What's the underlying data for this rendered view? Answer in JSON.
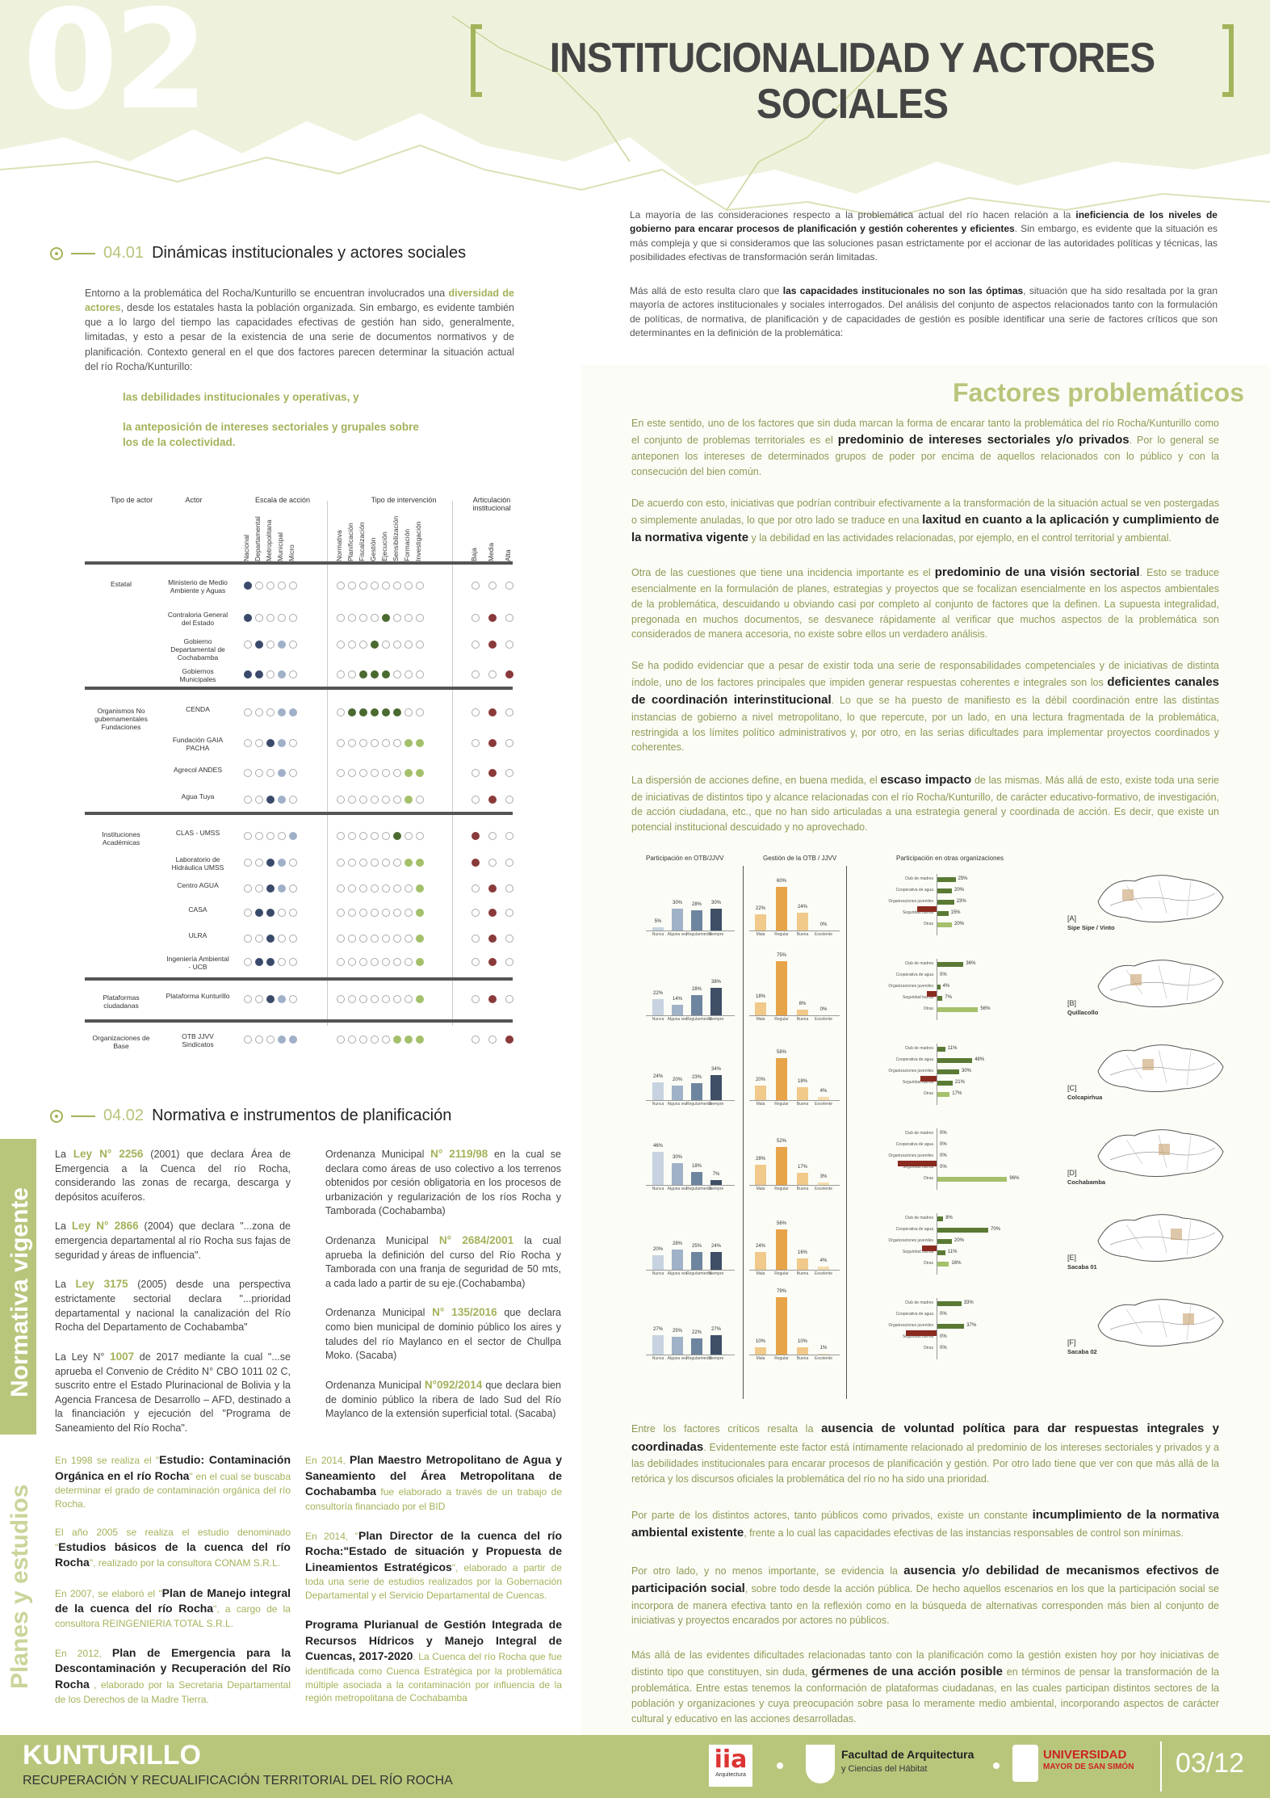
{
  "header": {
    "number": "02",
    "title": "INSTITUCIONALIDAD Y ACTORES SOCIALES"
  },
  "intro_right": {
    "p1_a": "La mayoría de las consideraciones respecto a la problemática actual del río  hacen relación a la ",
    "p1_b": "ineficiencia de los niveles de gobierno para encarar procesos de planificación y gestión coherentes y eficientes",
    "p1_c": ". Sin embargo, es evidente que la situación es más compleja y que si consideramos que las soluciones pasan estrictamente por el accionar de las autoridades políticas y técnicas, las posibilidades efectivas de transformación serán limitadas.",
    "p2_a": "Más allá de esto resulta claro que ",
    "p2_b": "las capacidades institucionales no son las óptimas",
    "p2_c": ", situación que ha sido resaltada por la gran mayoría de actores institucionales y sociales interrogados. Del análisis del conjunto de aspectos relacionados tanto con la formulación de políticas, de normativa, de planificación y de capacidades de gestión es posible identificar una serie de factores críticos que son determinantes en la definición de la problemática:"
  },
  "section1": {
    "num": "04.01",
    "title": "Dinámicas institucionales y actores sociales",
    "p_a": "Entorno a la problemática del Rocha/Kunturillo se encuentran involucrados una ",
    "p_b": "diversidad de actores",
    "p_c": ", desde los estatales hasta la población organizada. Sin embargo, es evidente también que a lo largo del tiempo las capacidades efectivas de gestión han sido, generalmente, limitadas, y esto a pesar de la existencia de una serie de documentos normativos y de planificación. Contexto general en el que dos factores parecen determinar la situación actual del río Rocha/Kunturillo:",
    "f1": "las debilidades institucionales y operativas,  y",
    "f2": "la anteposición de intereses sectoriales y grupales sobre los de la colectividad."
  },
  "table": {
    "headers": [
      "Tipo de actor",
      "Actor",
      "Escala de acción",
      "Tipo de intervención",
      "Articulación institucional"
    ],
    "scale_cols": [
      "Nacional",
      "Departamental",
      "Metropolitana",
      "Municipal",
      "Micro"
    ],
    "interv_cols": [
      "Normativa",
      "Planificación",
      "Fiscalización",
      "Gestión",
      "Ejecución",
      "Sensibilización",
      "Formación",
      "Investigación"
    ],
    "artic_cols": [
      "Baja",
      "Media",
      "Alta"
    ],
    "groups": [
      {
        "type": "Estatal",
        "rows": [
          "Ministerio de Medio Ambiente y Aguas",
          "Contraloria General del Estado",
          "Gobierno Departamental de Cochabamba",
          "Gobiernos Municipales"
        ]
      },
      {
        "type": "Organismos No gubernamentales\nFundaciones",
        "rows": [
          "CENDA",
          "Fundación GAIA PACHA",
          "Agrecol ANDES",
          "Agua Tuya"
        ]
      },
      {
        "type": "Instituciones Académicas",
        "rows": [
          "CLAS - UMSS",
          "Laboratorio de Hidráulica UMSS",
          "Centro AGUA",
          "CASA",
          "ULRA",
          "Ingeniería Ambiental - UCB"
        ]
      },
      {
        "type": "Plataformas ciudadanas",
        "rows": [
          "Plataforma Kunturillo"
        ]
      },
      {
        "type": "Organizaciones de Base",
        "rows": [
          "OTB JJVV Sindicatos"
        ]
      }
    ]
  },
  "section2": {
    "num": "04.02",
    "title": "Normativa e instrumentos de planificación"
  },
  "side": {
    "normativa": "Normativa vigente",
    "planes": "Planes y estudios"
  },
  "normativa": {
    "c1": [
      {
        "a": "La ",
        "hl": "Ley N° 2256",
        "b": " (2001) que declara Área de Emergencia a la Cuenca del río Rocha, considerando las zonas de recarga, descarga y depósitos acuíferos."
      },
      {
        "a": "La ",
        "hl": "Ley N° 2866",
        "b": " (2004) que declara \"...zona de emergencia departamental al río Rocha sus fajas de seguridad y áreas de influencia\"."
      },
      {
        "a": "La ",
        "hl": "Ley 3175",
        "b": " (2005) desde una perspectiva estrictamente sectorial declara \"...prioridad departamental y nacional la canalización del Río Rocha del Departamento de Cochabamba\""
      },
      {
        "a": "La Ley N° ",
        "hl": "1007",
        "b": " de 2017 mediante la cual \"...se aprueba el Convenio de Crédito N° CBO 1011 02 C, suscrito entre el Estado Plurinacional de Bolivia y la Agencia Francesa de Desarrollo – AFD, destinado a la financiación y ejecución del \"Programa de Saneamiento del Río Rocha\"."
      }
    ],
    "c2": [
      {
        "a": "Ordenanza Municipal ",
        "hl": "N° 2119/98",
        "b": " en la cual se declara como áreas de uso colectivo  a los terrenos obtenidos por cesión obligatoria en los procesos de urbanización y regularización de los ríos Rocha y Tamborada (Cochabamba)"
      },
      {
        "a": "Ordenanza Municipal ",
        "hl": "N° 2684/2001",
        "b": "  la cual aprueba la definición del curso del Río Rocha y Tamborada con una franja de seguridad de 50 mts, a cada lado a partir de su eje.(Cochabamba)"
      },
      {
        "a": "Ordenanza Municipal ",
        "hl": "N° 135/2016",
        "b": " que declara como bien municipal de dominio público los aires y taludes del río Maylanco en el sector de Chullpa Moko. (Sacaba)"
      },
      {
        "a": "Ordenanza Municipal ",
        "hl": "N°092/2014",
        "b": " que declara bien de dominio público la ribera de lado Sud del Río Maylanco de la extensión superficial total. (Sacaba)"
      }
    ]
  },
  "planes": {
    "c1": [
      {
        "a": "En 1998 se realiza el \"",
        "b": "Estudio: Contaminación Orgánica en el río Rocha",
        "c": "\" en el cual se buscaba determinar el grado de contaminación orgánica del río Rocha."
      },
      {
        "a": "El año 2005  se realiza el estudio denominado \"",
        "b": "Estudios básicos de la cuenca del río Rocha",
        "c": "\", realizado por la consultora CONAM S.R.L."
      },
      {
        "a": "En 2007, se elaboró el \"",
        "b": "Plan de Manejo integral de la cuenca del río Rocha",
        "c": "\", a cargo de la consultora REINGENIERIA TOTAL S.R.L."
      },
      {
        "a": "En 2012, ",
        "b": "Plan de Emergencia para la Descontaminación y Recuperación del Río Rocha",
        "c": " , elaborado por la Secretaria Departamental de los Derechos de la Madre Tierra."
      }
    ],
    "c2": [
      {
        "a": "En 2014, ",
        "b": "Plan Maestro Metropolitano de Agua y Saneamiento del Área Metropolitana de Cochabamba",
        "c": " fue elaborado  a través de un trabajo de consultoría financiado por el BID"
      },
      {
        "a": "En 2014, \"",
        "b": "Plan Director de la cuenca del río Rocha:\"Estado de situación y Propuesta de Lineamientos Estratégicos",
        "c": "\", elaborado a partir de toda una serie de estudios realizados por la Gobernación Departamental y el Servicio Departamental de Cuencas."
      },
      {
        "a": "",
        "b": "Programa Plurianual de Gestión Integrada de Recursos Hídricos y Manejo Integral de Cuencas, 2017-2020",
        "c": ". La Cuenca del río Rocha que fue identificada como Cuenca Estratégica por la problemática múltiple asociada a la contaminación por influencia de la región metropolitana de Cochabamba"
      }
    ]
  },
  "factores": {
    "title": "Factores problemáticos",
    "paras": [
      {
        "a": "En este sentido, uno de los factores que sin duda marcan la forma de encarar tanto la problemática del río Rocha/Kunturillo como el conjunto de problemas territoriales es el ",
        "b": "predominio de intereses sectoriales y/o privados",
        "c": ". Por lo general se anteponen los intereses de determinados grupos de poder por encima de aquellos relacionados con lo público y con la consecución del bien común."
      },
      {
        "a": "De acuerdo con esto, iniciativas que podrían contribuir efectivamente a la transformación de la situación actual se ven postergadas o simplemente anuladas, lo que por otro lado se traduce en una ",
        "b": "laxitud en cuanto a la aplicación y cumplimiento de la normativa vigente",
        "c": " y la debilidad en las actividades relacionadas, por ejemplo, en el control territorial y ambiental."
      },
      {
        "a": "Otra de las cuestiones que tiene una incidencia importante es el ",
        "b": "predominio de una visión sectorial",
        "c": ". Esto se traduce esencialmente en la formulación de planes, estrategias y proyectos que se focalizan esencialmente en los aspectos ambientales de la problemática, descuidando u obviando casi por completo al conjunto de factores que la definen. La supuesta integralidad, pregonada en muchos documentos, se desvanece rápidamente al verificar que muchos aspectos de la problemática son considerados de manera accesoria, no existe sobre ellos un verdadero análisis."
      },
      {
        "a": "Se ha podido evidenciar que a pesar de existir toda una serie de responsabilidades competenciales y de iniciativas de distinta índole, uno de los factores principales que impiden generar respuestas coherentes e integrales son los ",
        "b": "deficientes canales de coordinación interinstitucional",
        "c": ". Lo que se ha puesto de manifiesto es la débil coordinación entre las distintas instancias de gobierno a nivel metropolitano, lo que repercute, por un lado, en una lectura fragmentada de la problemática, restringida a los límites político administrativos y, por otro, en las serias dificultades para implementar proyectos coordinados y coherentes."
      },
      {
        "a": "La dispersión de acciones define, en  buena medida, el ",
        "b": "escaso impacto",
        "c": " de las mismas. Más allá de esto, existe toda una serie de iniciativas de distintos tipo y alcance relacionadas con el río Rocha/Kunturillo, de carácter educativo-formativo, de investigación, de acción ciudadana, etc., que no han sido articuladas a una estrategia general y coordinada de acción.  Es decir, que existe un potencial institucional descuidado y no aprovechado."
      }
    ],
    "paras2": [
      {
        "a": "Entre los factores críticos resalta la ",
        "b": "ausencia de voluntad política para dar respuestas integrales y coordinadas",
        "c": ". Evidentemente este factor está íntimamente relacionado al predominio de los intereses sectoriales y privados y a las debilidades institucionales para encarar procesos de planificación y gestión. Por otro lado tiene que ver con que más allá de la retórica y los discursos oficiales la problemática del río no ha sido una prioridad."
      },
      {
        "a": "Por parte de los distintos actores, tanto públicos como privados, existe un constante ",
        "b": "incumplimiento de la normativa ambiental existente",
        "c": ", frente a lo cual las capacidades efectivas de las instancias responsables de control son mínimas."
      },
      {
        "a": "Por otro lado, y no menos importante, se evidencia la ",
        "b": "ausencia y/o debilidad  de mecanismos efectivos de participación social",
        "c": ", sobre todo desde la acción pública. De hecho aquellos escenarios en los que la participación social se incorpora de manera efectiva tanto en la reflexión como en la búsqueda de alternativas corresponden más bien al conjunto de iniciativas y proyectos encarados por actores no públicos."
      },
      {
        "a": "Más allá de las evidentes dificultades relacionadas tanto con la planificación como la gestión existen hoy por hoy iniciativas de distinto tipo que constituyen, sin duda, ",
        "b": "gérmenes de una acción posible",
        "c": " en términos de pensar la transformación de la problemática. Entre estas tenemos la conformación de plataformas ciudadanas, en las cuales participan distintos sectores de la población y organizaciones y cuya preocupación sobre pasa lo meramente medio ambiental, incorporando aspectos de carácter cultural y educativo en las acciones desarrolladas."
      }
    ]
  },
  "charts": {
    "col_titles": [
      "Participación en OTB/JJVV",
      "Gestión de la OTB / JJVV",
      "Participación en otras organizaciones"
    ],
    "zones": [
      {
        "letter": "[A]",
        "name": "Sipe Sipe / Vinto"
      },
      {
        "letter": "[B]",
        "name": "Quillacollo"
      },
      {
        "letter": "[C]",
        "name": "Colcapirhua"
      },
      {
        "letter": "[D]",
        "name": "Cochabamba"
      },
      {
        "letter": "[E]",
        "name": "Sacaba 01"
      },
      {
        "letter": "[F]",
        "name": "Sacaba 02"
      }
    ]
  },
  "chart_data": [
    {
      "type": "bar",
      "title": "Participación en OTB/JJVV",
      "categories": [
        "Nunca",
        "Alguna vez",
        "Regularmente",
        "Siempre"
      ],
      "series": [
        {
          "name": "[A]",
          "values": [
            5,
            30,
            28,
            30
          ]
        },
        {
          "name": "[B]",
          "values": [
            22,
            14,
            28,
            38
          ]
        },
        {
          "name": "[C]",
          "values": [
            24,
            20,
            23,
            34
          ]
        },
        {
          "name": "[D]",
          "values": [
            46,
            30,
            18,
            7
          ]
        },
        {
          "name": "[E]",
          "values": [
            20,
            28,
            25,
            24
          ]
        },
        {
          "name": "[F]",
          "values": [
            27,
            25,
            22,
            27
          ]
        }
      ]
    },
    {
      "type": "bar",
      "title": "Gestión de la OTB / JJVV",
      "categories": [
        "Mala",
        "Regular",
        "Buena",
        "Excelente"
      ],
      "series": [
        {
          "name": "[A]",
          "values": [
            22,
            60,
            24,
            0
          ]
        },
        {
          "name": "[B]",
          "values": [
            18,
            75,
            8,
            0
          ]
        },
        {
          "name": "[C]",
          "values": [
            20,
            58,
            18,
            4
          ]
        },
        {
          "name": "[D]",
          "values": [
            28,
            52,
            17,
            3
          ]
        },
        {
          "name": "[E]",
          "values": [
            24,
            56,
            16,
            4
          ]
        },
        {
          "name": "[F]",
          "values": [
            10,
            79,
            10,
            1
          ]
        }
      ]
    },
    {
      "type": "bar",
      "title": "Participación en otras organizaciones",
      "categories": [
        "Club de madres",
        "Cooperativa de agua",
        "Organizaciones juveniles",
        "Seguridad barrial",
        "Otras"
      ],
      "series": [
        {
          "name": "[A]",
          "values": [
            25,
            20,
            23,
            15,
            20
          ]
        },
        {
          "name": "[B]",
          "values": [
            36,
            0,
            4,
            7,
            56
          ]
        },
        {
          "name": "[C]",
          "values": [
            11,
            48,
            30,
            21,
            17
          ]
        },
        {
          "name": "[D]",
          "values": [
            0,
            0,
            0,
            0,
            96
          ]
        },
        {
          "name": "[E]",
          "values": [
            8,
            70,
            20,
            11,
            16
          ]
        },
        {
          "name": "[F]",
          "values": [
            33,
            0,
            37,
            0,
            0
          ]
        }
      ]
    }
  ],
  "footer": {
    "title": "KUNTURILLO",
    "subtitle": "RECUPERACIÓN Y RECUALIFICACIÓN  TERRITORIAL DEL RÍO ROCHA",
    "logo1": "Arquitectura",
    "logo2_a": "Facultad de Arquitectura",
    "logo2_b": "y Ciencias del Hábitat",
    "logo3_a": "UNIVERSIDAD",
    "logo3_b": "MAYOR DE SAN SIMÓN",
    "page": "03/12"
  }
}
